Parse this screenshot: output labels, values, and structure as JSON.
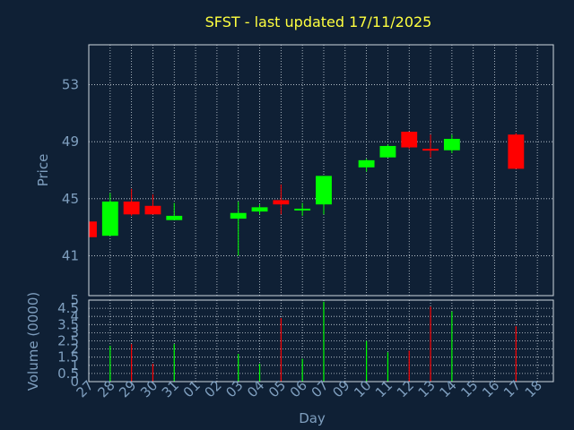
{
  "title": "SFST - last updated 17/11/2025",
  "colors": {
    "background": "#0f2035",
    "plot_border": "#cfd8e0",
    "grid": "#cfd8e0",
    "text": "#7f9fbf",
    "title": "#ffff3f",
    "up": "#00ff00",
    "down": "#ff0000"
  },
  "chart_data": [
    {
      "type": "candlestick",
      "ylabel": "Price",
      "xlabel": "",
      "ylim": [
        38.2,
        55.8
      ],
      "yticks": [
        "41",
        "45",
        "49",
        "53"
      ],
      "grid": true,
      "candles": [
        {
          "day": "27",
          "open": 43.4,
          "high": 43.4,
          "low": 42.3,
          "close": 42.3
        },
        {
          "day": "28",
          "open": 42.4,
          "high": 45.4,
          "low": 42.4,
          "close": 44.8
        },
        {
          "day": "29",
          "open": 44.8,
          "high": 45.7,
          "low": 43.8,
          "close": 43.9
        },
        {
          "day": "30",
          "open": 44.5,
          "high": 45.3,
          "low": 43.9,
          "close": 43.9
        },
        {
          "day": "31",
          "open": 43.5,
          "high": 44.7,
          "low": 43.5,
          "close": 43.8
        },
        {
          "day": "03",
          "open": 43.6,
          "high": 44.8,
          "low": 41.0,
          "close": 44.0
        },
        {
          "day": "04",
          "open": 44.1,
          "high": 44.6,
          "low": 43.9,
          "close": 44.4
        },
        {
          "day": "05",
          "open": 44.9,
          "high": 46.0,
          "low": 43.9,
          "close": 44.6
        },
        {
          "day": "06",
          "open": 44.2,
          "high": 44.7,
          "low": 43.8,
          "close": 44.3
        },
        {
          "day": "07",
          "open": 44.6,
          "high": 46.6,
          "low": 43.9,
          "close": 46.6
        },
        {
          "day": "10",
          "open": 47.2,
          "high": 47.8,
          "low": 46.9,
          "close": 47.7
        },
        {
          "day": "11",
          "open": 47.9,
          "high": 48.8,
          "low": 47.9,
          "close": 48.7
        },
        {
          "day": "12",
          "open": 49.7,
          "high": 49.7,
          "low": 48.5,
          "close": 48.6
        },
        {
          "day": "13",
          "open": 48.5,
          "high": 49.5,
          "low": 47.9,
          "close": 48.4
        },
        {
          "day": "14",
          "open": 48.4,
          "high": 49.5,
          "low": 48.2,
          "close": 49.2
        },
        {
          "day": "17",
          "open": 49.5,
          "high": 49.6,
          "low": 47.1,
          "close": 47.1
        }
      ]
    },
    {
      "type": "bar",
      "ylabel": "Volume (0000)",
      "xlabel": "Day",
      "ylim": [
        0,
        5
      ],
      "yticks": [
        "0",
        "0.5",
        "1",
        "1.5",
        "2",
        "2.5",
        "3",
        "3.5",
        "4",
        "4.5",
        "5"
      ],
      "x_tick_labels": [
        "27",
        "28",
        "29",
        "30",
        "31",
        "01",
        "02",
        "03",
        "04",
        "05",
        "06",
        "07",
        "09",
        "10",
        "11",
        "12",
        "13",
        "14",
        "15",
        "16",
        "17",
        "18"
      ],
      "grid": true,
      "volumes": [
        {
          "day": "28",
          "value": 2.2,
          "direction": "up"
        },
        {
          "day": "29",
          "value": 2.3,
          "direction": "down"
        },
        {
          "day": "30",
          "value": 1.1,
          "direction": "down"
        },
        {
          "day": "31",
          "value": 2.3,
          "direction": "up"
        },
        {
          "day": "03",
          "value": 1.7,
          "direction": "up"
        },
        {
          "day": "04",
          "value": 1.1,
          "direction": "up"
        },
        {
          "day": "05",
          "value": 3.9,
          "direction": "down"
        },
        {
          "day": "06",
          "value": 1.4,
          "direction": "up"
        },
        {
          "day": "07",
          "value": 4.9,
          "direction": "up"
        },
        {
          "day": "10",
          "value": 2.5,
          "direction": "up"
        },
        {
          "day": "11",
          "value": 1.8,
          "direction": "up"
        },
        {
          "day": "12",
          "value": 1.9,
          "direction": "down"
        },
        {
          "day": "13",
          "value": 4.6,
          "direction": "down"
        },
        {
          "day": "14",
          "value": 4.3,
          "direction": "up"
        },
        {
          "day": "17",
          "value": 3.4,
          "direction": "down"
        }
      ]
    }
  ]
}
